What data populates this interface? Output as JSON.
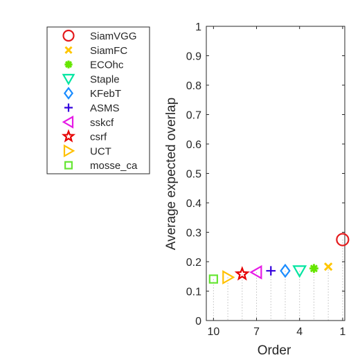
{
  "chart_data": {
    "type": "scatter",
    "title": "",
    "xlabel": "Order",
    "ylabel": "Average expected overlap",
    "xlim": [
      10.5,
      0.85
    ],
    "ylim": [
      0,
      1
    ],
    "x_reversed": true,
    "xticks": [
      10,
      7,
      4,
      1
    ],
    "yticks": [
      0,
      0.1,
      0.2,
      0.3,
      0.4,
      0.5,
      0.6,
      0.7,
      0.8,
      0.9,
      1
    ],
    "legend_position": "left of plot, top",
    "grid": false,
    "series": [
      {
        "name": "SiamVGG",
        "x": 1,
        "y": 0.275,
        "marker": "circle",
        "color": "#e41a1c"
      },
      {
        "name": "SiamFC",
        "x": 2,
        "y": 0.183,
        "marker": "x",
        "color": "#ffc600"
      },
      {
        "name": "ECOhc",
        "x": 3,
        "y": 0.177,
        "marker": "asterisk",
        "color": "#66e600"
      },
      {
        "name": "Staple",
        "x": 4,
        "y": 0.169,
        "marker": "triangle-down",
        "color": "#00e5a0"
      },
      {
        "name": "KFebT",
        "x": 5,
        "y": 0.169,
        "marker": "diamond",
        "color": "#1a8cff"
      },
      {
        "name": "ASMS",
        "x": 6,
        "y": 0.169,
        "marker": "plus",
        "color": "#3300dd"
      },
      {
        "name": "sskcf",
        "x": 7,
        "y": 0.164,
        "marker": "triangle-left",
        "color": "#e61ae6"
      },
      {
        "name": "csrf",
        "x": 8,
        "y": 0.158,
        "marker": "star",
        "color": "#e60000"
      },
      {
        "name": "UCT",
        "x": 9,
        "y": 0.147,
        "marker": "triangle-right",
        "color": "#ffc000"
      },
      {
        "name": "mosse_ca",
        "x": 10,
        "y": 0.141,
        "marker": "square",
        "color": "#66e633"
      }
    ]
  }
}
